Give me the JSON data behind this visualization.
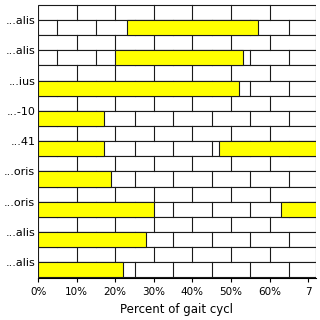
{
  "labels": [
    "...alis",
    "...alis",
    "...ius",
    "...-10",
    "...41",
    "...oris",
    "...oris",
    "...alis",
    "...alis"
  ],
  "labels_top_to_bottom": [
    "...alis",
    "...alis",
    "...ius",
    "...-10",
    "...41",
    "...oris",
    "...oris",
    "...alis",
    "...alis"
  ],
  "segments_top_to_bottom": [
    [
      [
        23,
        57
      ]
    ],
    [
      [
        20,
        53
      ]
    ],
    [
      [
        0,
        52
      ]
    ],
    [
      [
        0,
        17
      ]
    ],
    [
      [
        0,
        17
      ],
      [
        47,
        72
      ]
    ],
    [
      [
        0,
        19
      ]
    ],
    [
      [
        0,
        30
      ],
      [
        63,
        72
      ]
    ],
    [
      [
        0,
        28
      ]
    ],
    [
      [
        0,
        22
      ]
    ]
  ],
  "bar_color": "#ffff00",
  "bar_edge_color": "#1a1a1a",
  "background_color": "#ffffff",
  "xlabel": "Percent of gait cycl",
  "xlabel_fontsize": 8.5,
  "tick_labels": [
    "0%",
    "10%",
    "20%",
    "30%",
    "40%",
    "50%",
    "60%",
    "7"
  ],
  "tick_values": [
    0,
    10,
    20,
    30,
    40,
    50,
    60,
    70
  ],
  "xlim": [
    0,
    72
  ],
  "label_fontsize": 8,
  "tick_fontsize": 7.5
}
